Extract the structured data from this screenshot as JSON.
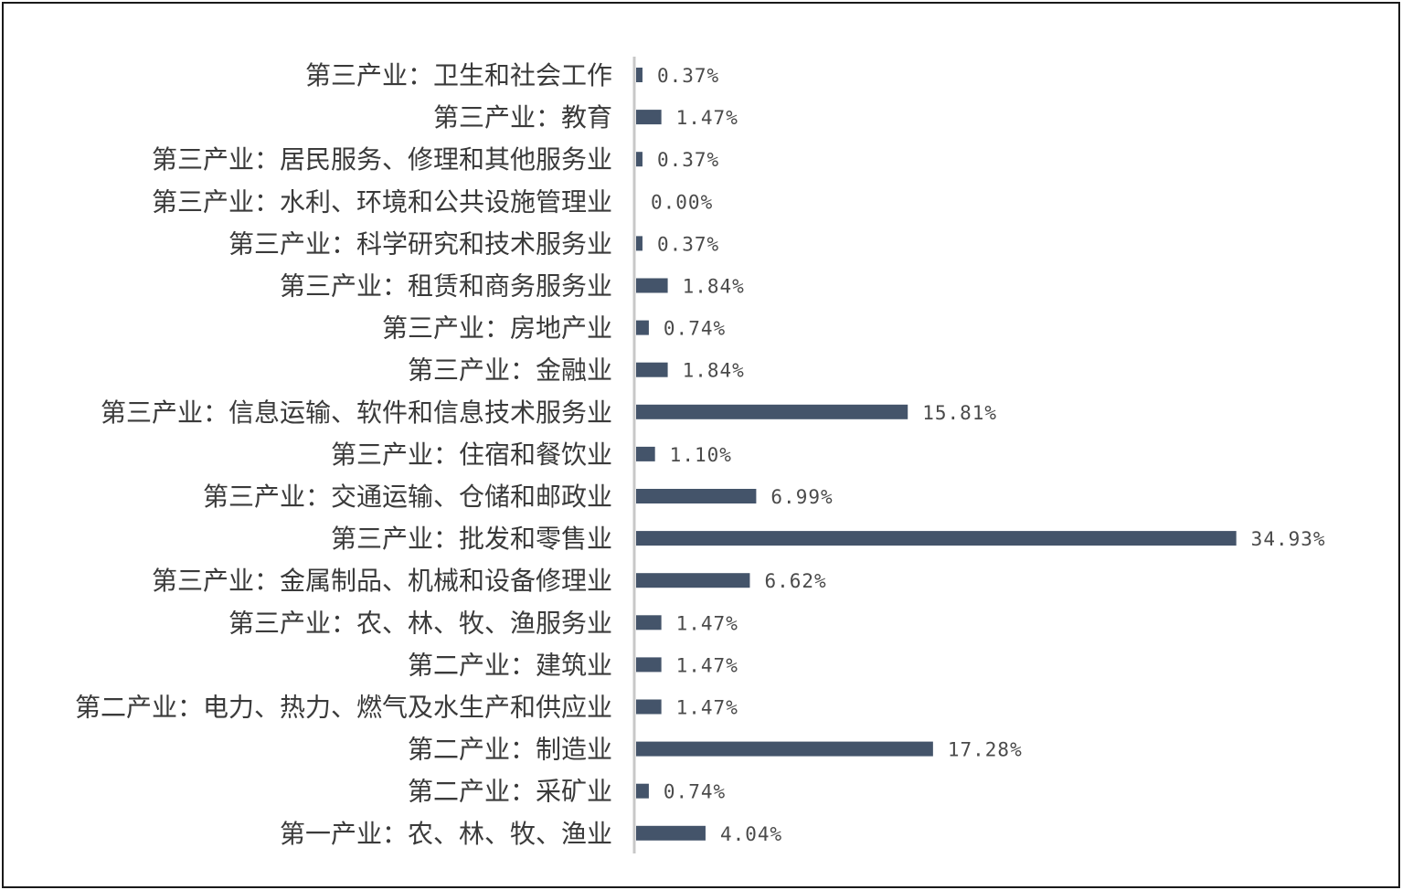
{
  "chart_data": {
    "type": "bar",
    "orientation": "horizontal",
    "title": "",
    "xlabel": "",
    "ylabel": "",
    "xlim": [
      0,
      36
    ],
    "grid": false,
    "legend": "none",
    "bar_color": "#44546a",
    "axis_color": "#c8c8c8",
    "categories": [
      "第三产业：卫生和社会工作",
      "第三产业：教育",
      "第三产业：居民服务、修理和其他服务业",
      "第三产业：水利、环境和公共设施管理业",
      "第三产业：科学研究和技术服务业",
      "第三产业：租赁和商务服务业",
      "第三产业：房地产业",
      "第三产业：金融业",
      "第三产业：信息运输、软件和信息技术服务业",
      "第三产业：住宿和餐饮业",
      "第三产业：交通运输、仓储和邮政业",
      "第三产业：批发和零售业",
      "第三产业：金属制品、机械和设备修理业",
      "第三产业：农、林、牧、渔服务业",
      "第二产业：建筑业",
      "第二产业：电力、热力、燃气及水生产和供应业",
      "第二产业：制造业",
      "第二产业：采矿业",
      "第一产业：农、林、牧、渔业"
    ],
    "values": [
      0.37,
      1.47,
      0.37,
      0.0,
      0.37,
      1.84,
      0.74,
      1.84,
      15.81,
      1.1,
      6.99,
      34.93,
      6.62,
      1.47,
      1.47,
      1.47,
      17.28,
      0.74,
      4.04
    ],
    "value_labels": [
      "0.37%",
      "1.47%",
      "0.37%",
      "0.00%",
      "0.37%",
      "1.84%",
      "0.74%",
      "1.84%",
      "15.81%",
      "1.10%",
      "6.99%",
      "34.93%",
      "6.62%",
      "1.47%",
      "1.47%",
      "1.47%",
      "17.28%",
      "0.74%",
      "4.04%"
    ]
  }
}
